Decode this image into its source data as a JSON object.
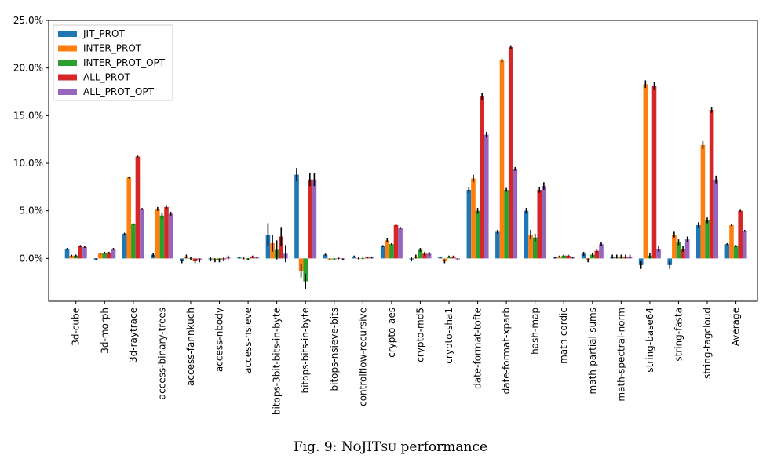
{
  "caption": {
    "prefix": "Fig. 9: N",
    "sc1": "O",
    "mid": "JIT",
    "sc2": "SU",
    "suffix": " performance"
  },
  "chart_data": {
    "type": "bar",
    "title": "",
    "xlabel": "",
    "ylabel": "",
    "ylim": [
      -0.045,
      0.25
    ],
    "yticks": [
      0.0,
      0.05,
      0.1,
      0.15,
      0.2,
      0.25
    ],
    "ytick_labels": [
      "0.0%",
      "5.0%",
      "10.0%",
      "15.0%",
      "20.0%",
      "25.0%"
    ],
    "grid": false,
    "legend_position": "top-left",
    "categories": [
      "3d-cube",
      "3d-morph",
      "3d-raytrace",
      "access-binary-trees",
      "access-fannkuch",
      "access-nbody",
      "access-nsieve",
      "bitops-3bit-bits-in-byte",
      "bitops-bits-in-byte",
      "bitops-nsieve-bits",
      "controlflow-recursive",
      "crypto-aes",
      "crypto-md5",
      "crypto-sha1",
      "date-format-tofte",
      "date-format-xparb",
      "hash-map",
      "math-cordic",
      "math-partial-sums",
      "math-spectral-norm",
      "string-base64",
      "string-fasta",
      "string-tagcloud",
      "Average"
    ],
    "series": [
      {
        "name": "JIT_PROT",
        "color": "#1f77b4",
        "values": [
          0.01,
          -0.001,
          0.026,
          0.004,
          -0.003,
          -0.001,
          0.001,
          0.025,
          0.088,
          0.004,
          0.002,
          0.013,
          -0.001,
          0.001,
          0.072,
          0.028,
          0.05,
          0.001,
          0.005,
          0.002,
          -0.007,
          -0.007,
          0.035,
          0.015
        ],
        "errors": [
          0.001,
          0.001,
          0.001,
          0.002,
          0.002,
          0.002,
          0.001,
          0.012,
          0.007,
          0.001,
          0.001,
          0.001,
          0.002,
          0.001,
          0.003,
          0.002,
          0.003,
          0.001,
          0.002,
          0.002,
          0.004,
          0.004,
          0.003,
          0.001
        ]
      },
      {
        "name": "INTER_PROT",
        "color": "#ff7f0e",
        "values": [
          0.003,
          0.005,
          0.085,
          0.052,
          0.002,
          -0.002,
          0.0,
          0.016,
          -0.013,
          -0.001,
          0.0,
          0.019,
          0.002,
          -0.003,
          0.084,
          0.208,
          0.025,
          0.002,
          -0.002,
          0.002,
          0.183,
          0.025,
          0.119,
          0.035
        ],
        "errors": [
          0.001,
          0.001,
          0.001,
          0.002,
          0.002,
          0.002,
          0.001,
          0.009,
          0.007,
          0.001,
          0.001,
          0.002,
          0.002,
          0.002,
          0.004,
          0.002,
          0.005,
          0.001,
          0.002,
          0.002,
          0.004,
          0.003,
          0.004,
          0.001
        ]
      },
      {
        "name": "INTER_PROT_OPT",
        "color": "#2ca02c",
        "values": [
          0.003,
          0.006,
          0.036,
          0.045,
          0.0,
          -0.002,
          -0.001,
          0.009,
          -0.024,
          -0.001,
          0.0,
          0.015,
          0.009,
          0.002,
          0.05,
          0.072,
          0.022,
          0.003,
          0.004,
          0.002,
          0.003,
          0.017,
          0.04,
          0.013
        ],
        "errors": [
          0.001,
          0.001,
          0.001,
          0.003,
          0.002,
          0.002,
          0.001,
          0.01,
          0.008,
          0.001,
          0.001,
          0.001,
          0.002,
          0.001,
          0.003,
          0.002,
          0.004,
          0.001,
          0.002,
          0.002,
          0.003,
          0.003,
          0.003,
          0.001
        ]
      },
      {
        "name": "ALL_PROT",
        "color": "#d62728",
        "values": [
          0.013,
          0.006,
          0.107,
          0.054,
          -0.003,
          -0.001,
          0.002,
          0.023,
          0.083,
          0.0,
          0.001,
          0.035,
          0.005,
          0.002,
          0.17,
          0.222,
          0.072,
          0.003,
          0.008,
          0.002,
          0.181,
          0.01,
          0.156,
          0.05
        ],
        "errors": [
          0.001,
          0.001,
          0.001,
          0.002,
          0.002,
          0.002,
          0.001,
          0.01,
          0.007,
          0.001,
          0.001,
          0.001,
          0.002,
          0.001,
          0.004,
          0.002,
          0.003,
          0.001,
          0.002,
          0.002,
          0.004,
          0.003,
          0.003,
          0.001
        ]
      },
      {
        "name": "ALL_PROT_OPT",
        "color": "#9467bd",
        "values": [
          0.012,
          0.01,
          0.052,
          0.047,
          -0.002,
          0.001,
          0.001,
          0.005,
          0.083,
          -0.001,
          0.001,
          0.032,
          0.005,
          -0.001,
          0.13,
          0.094,
          0.076,
          0.001,
          0.015,
          0.002,
          0.01,
          0.02,
          0.083,
          0.029
        ],
        "errors": [
          0.001,
          0.001,
          0.001,
          0.002,
          0.002,
          0.002,
          0.001,
          0.009,
          0.007,
          0.001,
          0.001,
          0.001,
          0.002,
          0.001,
          0.003,
          0.002,
          0.004,
          0.001,
          0.002,
          0.002,
          0.003,
          0.003,
          0.004,
          0.001
        ]
      }
    ]
  }
}
